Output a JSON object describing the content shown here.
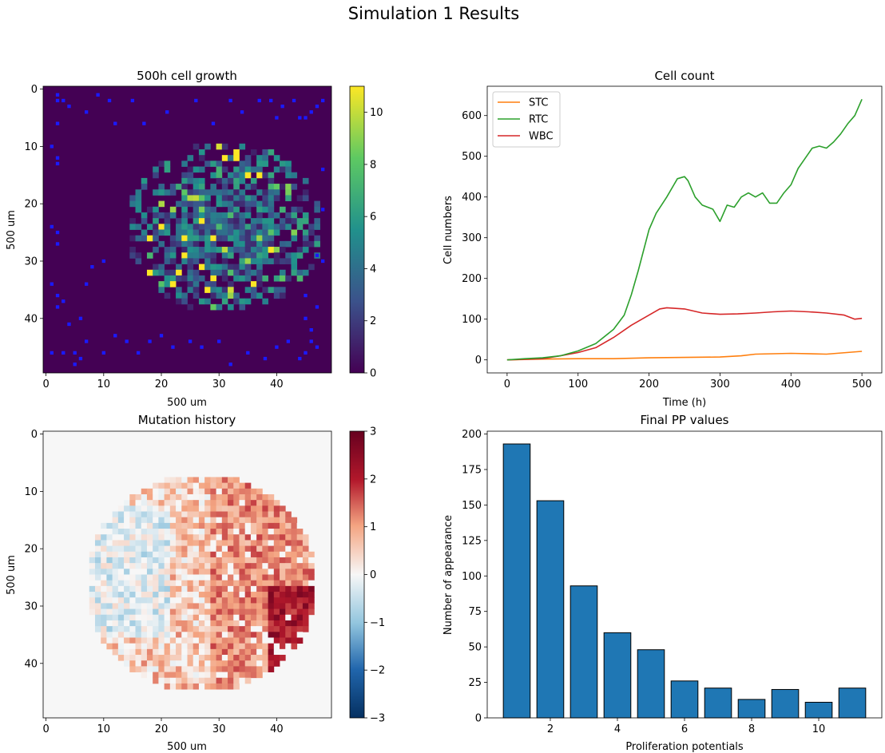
{
  "figure": {
    "title": "Simulation 1 Results"
  },
  "chart_data": [
    {
      "type": "heatmap",
      "title": "500h cell growth",
      "xlabel": "500 um",
      "ylabel": "500 um",
      "grid_size": [
        50,
        50
      ],
      "xticks": [
        "0",
        "10",
        "20",
        "30",
        "40"
      ],
      "yticks": [
        "0",
        "10",
        "20",
        "30",
        "40"
      ],
      "colormap": "viridis",
      "colorbar": {
        "min": 0,
        "max": 11,
        "ticks": [
          "0",
          "2",
          "4",
          "6",
          "8",
          "10"
        ]
      },
      "overlay_marker_color": "#1a1aff",
      "blue_markers": [
        [
          2,
          1
        ],
        [
          2,
          2
        ],
        [
          3,
          2
        ],
        [
          4,
          3
        ],
        [
          2,
          6
        ],
        [
          7,
          4
        ],
        [
          9,
          1
        ],
        [
          11,
          2
        ],
        [
          12,
          6
        ],
        [
          15,
          2
        ],
        [
          17,
          6
        ],
        [
          21,
          4
        ],
        [
          26,
          2
        ],
        [
          29,
          6
        ],
        [
          32,
          2
        ],
        [
          34,
          4
        ],
        [
          37,
          2
        ],
        [
          39,
          2
        ],
        [
          40,
          5
        ],
        [
          41,
          3
        ],
        [
          43,
          2
        ],
        [
          44,
          5
        ],
        [
          45,
          5
        ],
        [
          46,
          4
        ],
        [
          47,
          3
        ],
        [
          48,
          2
        ],
        [
          1,
          10
        ],
        [
          2,
          12
        ],
        [
          2,
          13
        ],
        [
          48,
          14
        ],
        [
          48,
          21
        ],
        [
          47,
          29
        ],
        [
          48,
          30
        ],
        [
          1,
          24
        ],
        [
          2,
          25
        ],
        [
          2,
          27
        ],
        [
          1,
          34
        ],
        [
          2,
          36
        ],
        [
          3,
          37
        ],
        [
          2,
          38
        ],
        [
          6,
          40
        ],
        [
          4,
          41
        ],
        [
          5,
          46
        ],
        [
          6,
          47
        ],
        [
          5,
          48
        ],
        [
          7,
          44
        ],
        [
          1,
          46
        ],
        [
          3,
          46
        ],
        [
          10,
          46
        ],
        [
          12,
          43
        ],
        [
          14,
          44
        ],
        [
          16,
          46
        ],
        [
          18,
          44
        ],
        [
          20,
          43
        ],
        [
          22,
          45
        ],
        [
          25,
          44
        ],
        [
          27,
          45
        ],
        [
          30,
          44
        ],
        [
          32,
          48
        ],
        [
          35,
          46
        ],
        [
          38,
          47
        ],
        [
          40,
          45
        ],
        [
          42,
          44
        ],
        [
          44,
          47
        ],
        [
          45,
          46
        ],
        [
          46,
          44
        ],
        [
          47,
          45
        ],
        [
          45,
          40
        ],
        [
          46,
          42
        ],
        [
          7,
          34
        ],
        [
          8,
          31
        ],
        [
          10,
          30
        ],
        [
          45,
          36
        ],
        [
          47,
          38
        ]
      ],
      "blob": {
        "center": [
          31,
          24
        ],
        "radius_x": 17,
        "radius_y": 15,
        "seed": 7,
        "hot_color": "#fde725"
      }
    },
    {
      "type": "line",
      "title": "Cell count",
      "xlabel": "Time (h)",
      "ylabel": "Cell numbers",
      "xlim": [
        -28,
        528
      ],
      "ylim": [
        -32,
        672
      ],
      "xticks": [
        0,
        100,
        200,
        300,
        400,
        500
      ],
      "yticks": [
        0,
        100,
        200,
        300,
        400,
        500,
        600
      ],
      "legend": "top-left",
      "series": [
        {
          "name": "STC",
          "color": "#ff7f0e",
          "x": [
            0,
            50,
            100,
            150,
            200,
            250,
            300,
            330,
            350,
            400,
            450,
            500
          ],
          "y": [
            0,
            2,
            3,
            3,
            5,
            6,
            7,
            10,
            14,
            16,
            14,
            21
          ]
        },
        {
          "name": "RTC",
          "color": "#2ca02c",
          "x": [
            0,
            25,
            50,
            75,
            100,
            125,
            150,
            165,
            175,
            185,
            200,
            210,
            225,
            235,
            240,
            250,
            255,
            265,
            275,
            290,
            300,
            310,
            320,
            330,
            340,
            350,
            360,
            370,
            380,
            390,
            400,
            410,
            420,
            430,
            440,
            450,
            460,
            470,
            480,
            490,
            500
          ],
          "y": [
            0,
            3,
            5,
            10,
            22,
            40,
            75,
            110,
            160,
            220,
            320,
            360,
            400,
            430,
            445,
            450,
            440,
            400,
            380,
            370,
            340,
            380,
            375,
            400,
            410,
            400,
            410,
            385,
            385,
            410,
            430,
            470,
            495,
            520,
            525,
            520,
            535,
            555,
            580,
            600,
            640
          ]
        },
        {
          "name": "WBC",
          "color": "#d62728",
          "x": [
            0,
            50,
            75,
            100,
            125,
            150,
            175,
            200,
            215,
            225,
            250,
            275,
            300,
            325,
            350,
            375,
            400,
            425,
            450,
            475,
            490,
            500
          ],
          "y": [
            0,
            3,
            10,
            18,
            30,
            55,
            85,
            110,
            125,
            128,
            125,
            115,
            112,
            113,
            115,
            118,
            120,
            118,
            115,
            110,
            100,
            102
          ]
        }
      ]
    },
    {
      "type": "heatmap",
      "title": "Mutation history",
      "xlabel": "500 um",
      "ylabel": "500 um",
      "grid_size": [
        50,
        50
      ],
      "xticks": [
        "0",
        "10",
        "20",
        "30",
        "40"
      ],
      "yticks": [
        "0",
        "10",
        "20",
        "30",
        "40"
      ],
      "colormap": "RdBu_r",
      "colorbar": {
        "min": -3,
        "max": 3,
        "ticks": [
          "3",
          "2",
          "1",
          "0",
          "−1",
          "−2",
          "−3"
        ]
      },
      "blob": {
        "center": [
          27,
          26
        ],
        "radius_x": 20,
        "radius_y": 19,
        "seed": 11
      }
    },
    {
      "type": "bar",
      "title": "Final PP values",
      "xlabel": "Proliferation potentials",
      "ylabel": "Number of appearance",
      "categories": [
        1,
        2,
        3,
        4,
        5,
        6,
        7,
        8,
        9,
        10,
        11
      ],
      "values": [
        193,
        153,
        93,
        60,
        48,
        26,
        21,
        13,
        20,
        11,
        21
      ],
      "xlim": [
        0.12,
        11.88
      ],
      "ylim": [
        0,
        202
      ],
      "xticks": [
        2,
        4,
        6,
        8,
        10
      ],
      "yticks": [
        0,
        25,
        50,
        75,
        100,
        125,
        150,
        175,
        200
      ],
      "bar_color": "#1f77b4",
      "edge_color": "#000000"
    }
  ]
}
